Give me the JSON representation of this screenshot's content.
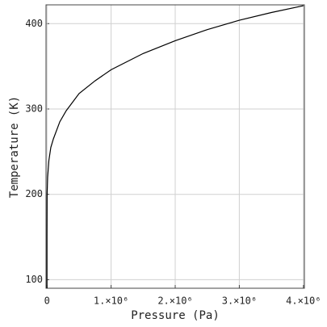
{
  "chart_data": {
    "type": "line",
    "xlabel": "Pressure (Pa)",
    "ylabel": "Temperature (K)",
    "x": [
      0,
      1,
      100,
      2000,
      10000,
      30000,
      60000,
      100000,
      200000,
      300000,
      500000,
      750000,
      1000000,
      1500000,
      2000000,
      2500000,
      3000000,
      3500000,
      4000000
    ],
    "series": [
      {
        "color": "#000000",
        "values": [
          90,
          100,
          150,
          200,
          220,
          240,
          255,
          265,
          285,
          298,
          318,
          333,
          346,
          365,
          380,
          393,
          404,
          413,
          421
        ]
      }
    ],
    "xlim": [
      -15000,
      4015000
    ],
    "ylim": [
      90,
      422
    ],
    "xticks": [
      0,
      {
        "value": 1000000,
        "label": "1.×10⁶"
      },
      {
        "value": 2000000,
        "label": "2.×10⁶"
      },
      {
        "value": 3000000,
        "label": "3.×10⁶"
      },
      {
        "value": 4000000,
        "label": "4.×10⁶"
      }
    ],
    "yticks": [
      100,
      200,
      300,
      400
    ],
    "grid": true
  }
}
